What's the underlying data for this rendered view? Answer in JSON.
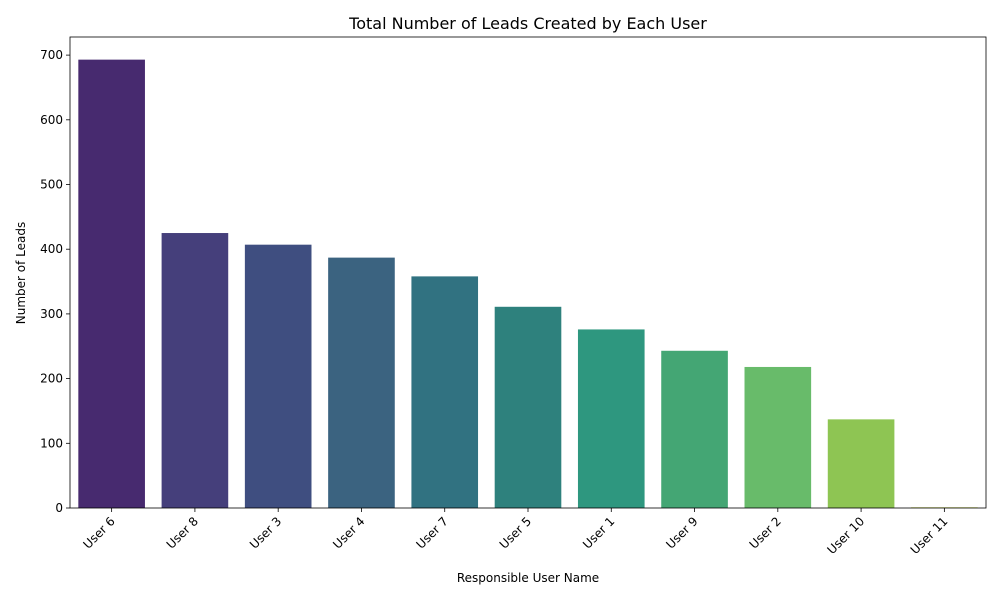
{
  "chart_data": {
    "type": "bar",
    "title": "Total Number of Leads Created by Each User",
    "xlabel": "Responsible User Name",
    "ylabel": "Number of Leads",
    "categories": [
      "User 6",
      "User 8",
      "User 3",
      "User 4",
      "User 7",
      "User 5",
      "User 1",
      "User 9",
      "User 2",
      "User 10",
      "User 11"
    ],
    "values": [
      693,
      425,
      407,
      387,
      358,
      311,
      276,
      243,
      218,
      137,
      1
    ],
    "ylim": [
      0,
      728
    ],
    "yticks": [
      0,
      100,
      200,
      300,
      400,
      500,
      600,
      700
    ],
    "colors": [
      "#482173",
      "#433e85",
      "#3b518b",
      "#38638d",
      "#2c728e",
      "#287d8e",
      "#1f968b",
      "#20a386",
      "#3bbb75",
      "#5ec962",
      "#8fd744",
      "#bddf26"
    ],
    "bar_colors": [
      "#472a6f",
      "#453f7b",
      "#3f4e80",
      "#3b6380",
      "#317281",
      "#2e817d",
      "#2e977f",
      "#44a674",
      "#68bb6a",
      "#8ec553",
      "#c9d93a"
    ],
    "grid": false,
    "legend": "none"
  }
}
